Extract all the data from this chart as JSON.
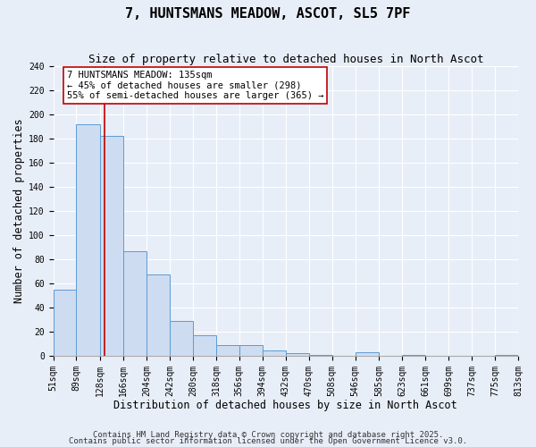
{
  "title": "7, HUNTSMANS MEADOW, ASCOT, SL5 7PF",
  "subtitle": "Size of property relative to detached houses in North Ascot",
  "xlabel": "Distribution of detached houses by size in North Ascot",
  "ylabel": "Number of detached properties",
  "bar_values": [
    55,
    192,
    182,
    87,
    67,
    29,
    17,
    9,
    9,
    4,
    2,
    1,
    0,
    3,
    0,
    1,
    0,
    0,
    0,
    1
  ],
  "bin_edges": [
    51,
    89,
    128,
    166,
    204,
    242,
    280,
    318,
    356,
    394,
    432,
    470,
    508,
    546,
    585,
    623,
    661,
    699,
    737,
    775,
    813
  ],
  "bin_labels": [
    "51sqm",
    "89sqm",
    "128sqm",
    "166sqm",
    "204sqm",
    "242sqm",
    "280sqm",
    "318sqm",
    "356sqm",
    "394sqm",
    "432sqm",
    "470sqm",
    "508sqm",
    "546sqm",
    "585sqm",
    "623sqm",
    "661sqm",
    "699sqm",
    "737sqm",
    "775sqm",
    "813sqm"
  ],
  "bar_color": "#cddcf0",
  "bar_edge_color": "#5b9bd5",
  "vline_x": 135,
  "vline_color": "#c00000",
  "annotation_line1": "7 HUNTSMANS MEADOW: 135sqm",
  "annotation_line2": "← 45% of detached houses are smaller (298)",
  "annotation_line3": "55% of semi-detached houses are larger (365) →",
  "ylim": [
    0,
    240
  ],
  "yticks": [
    0,
    20,
    40,
    60,
    80,
    100,
    120,
    140,
    160,
    180,
    200,
    220,
    240
  ],
  "footer1": "Contains HM Land Registry data © Crown copyright and database right 2025.",
  "footer2": "Contains public sector information licensed under the Open Government Licence v3.0.",
  "bg_color": "#e8eef8",
  "plot_bg_color": "#e8eef8",
  "grid_color": "#ffffff",
  "title_fontsize": 11,
  "subtitle_fontsize": 9,
  "axis_label_fontsize": 8.5,
  "tick_fontsize": 7,
  "footer_fontsize": 6.5,
  "ann_fontsize": 7.5
}
